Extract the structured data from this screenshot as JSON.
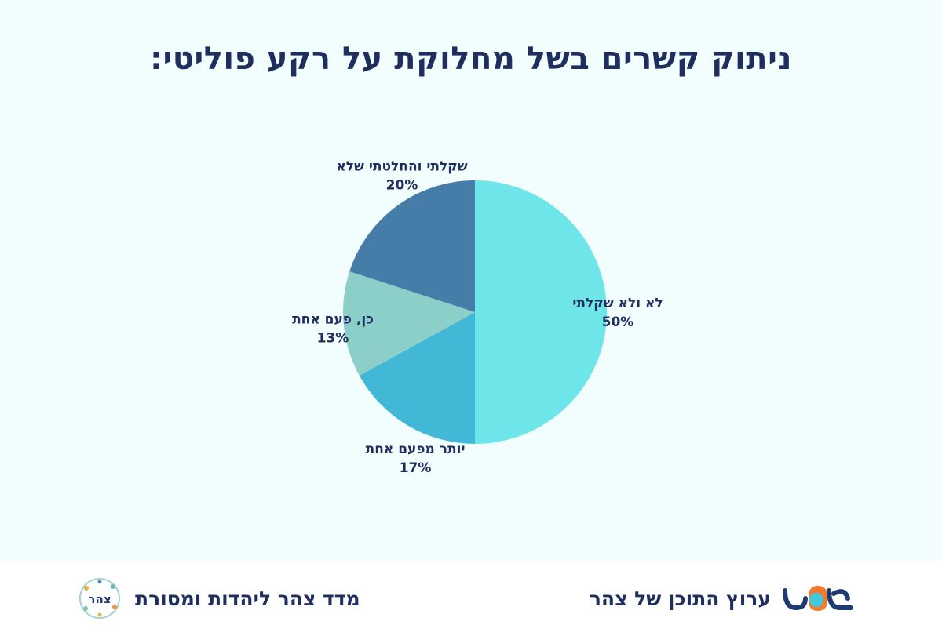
{
  "title": "ניתוק קשרים בשל מחלוקת על רקע פוליטי:",
  "chart_data": {
    "type": "pie",
    "start": "top",
    "direction": "clockwise",
    "slices": [
      {
        "label": "לא ולא שקלתי",
        "value": 50,
        "value_label": "50%",
        "color": "#6de5e9"
      },
      {
        "label": "יותר מפעם אחת",
        "value": 17,
        "value_label": "17%",
        "color": "#43b8d6"
      },
      {
        "label": "כן, פעם אחת",
        "value": 13,
        "value_label": "13%",
        "color": "#8ccfc8"
      },
      {
        "label": "שקלתי והחלטתי שלא",
        "value": 20,
        "value_label": "20%",
        "color": "#467ca8"
      }
    ]
  },
  "footer": {
    "right_text": "ערוץ התוכן של צהר",
    "right_logo_icon": "mashov-logo",
    "left_text": "מדד צהר ליהדות ומסורת",
    "left_logo_icon": "tzohar-seal",
    "left_logo_text": "צהר"
  },
  "colors": {
    "background": "#f2fdfe",
    "title": "#1e2f5f",
    "label": "#1e2f5f",
    "logo_navy": "#1f3a73",
    "logo_orange": "#f07a2d",
    "logo_cyan": "#45c7dd"
  }
}
